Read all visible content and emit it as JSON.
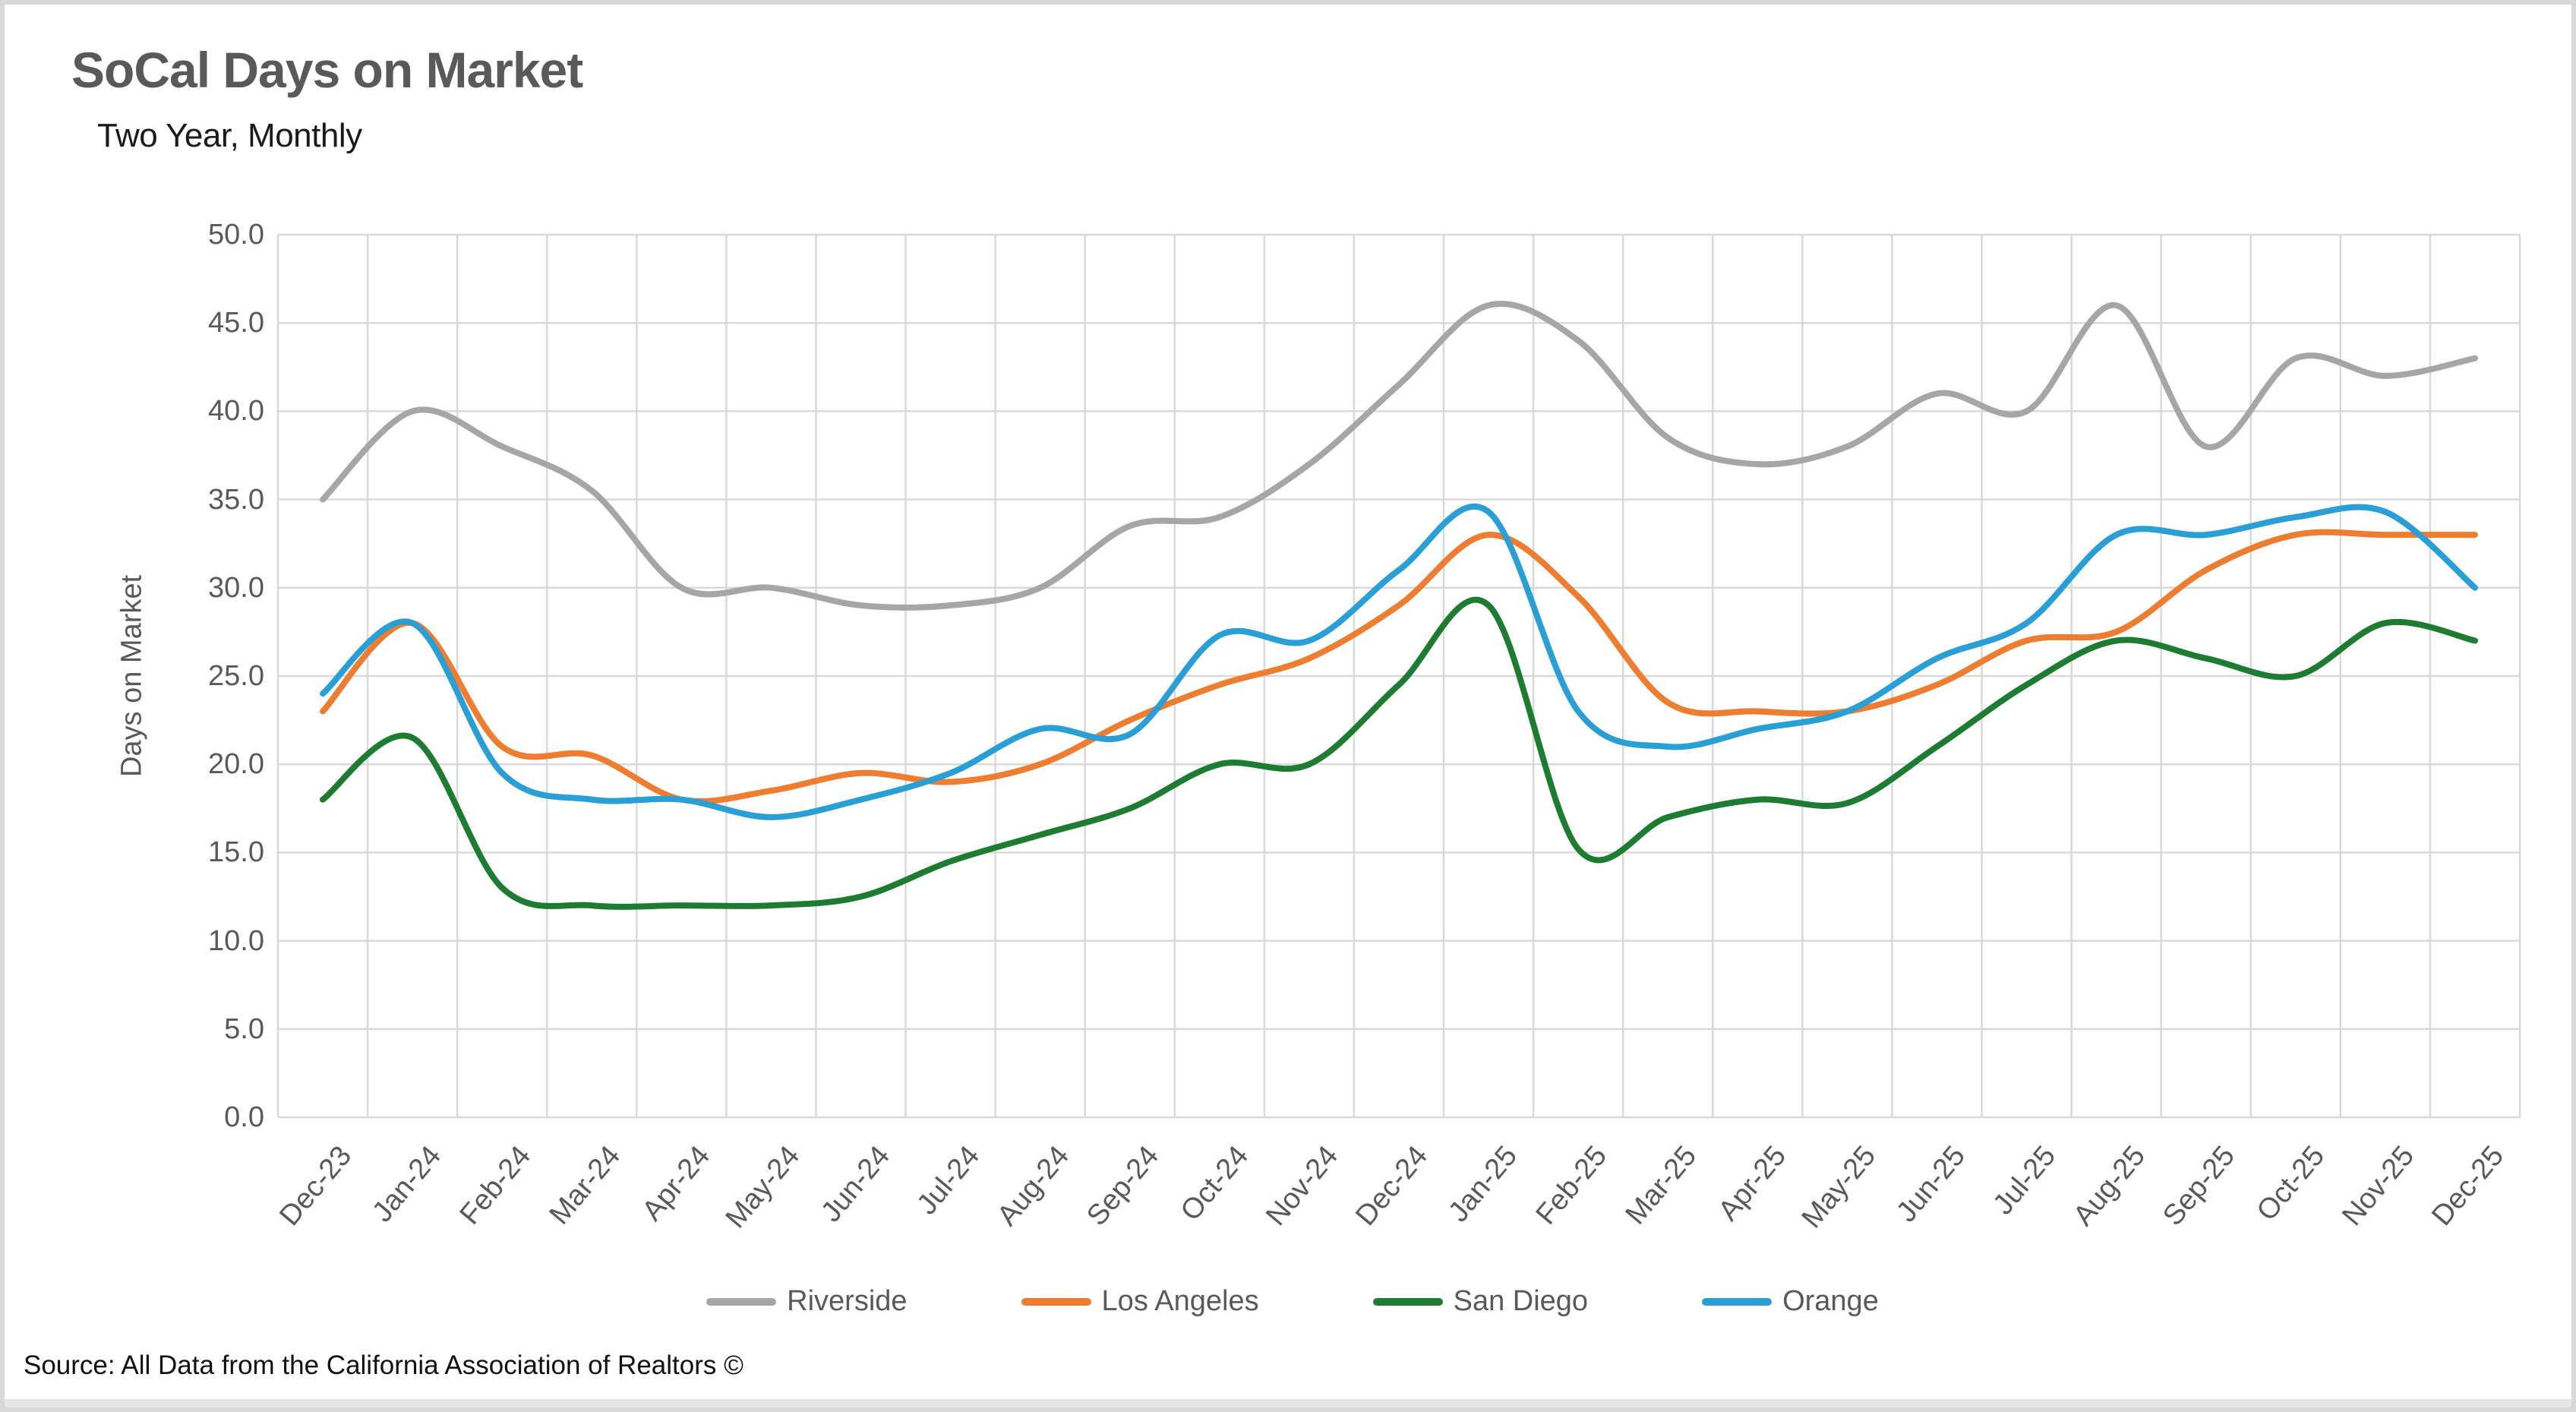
{
  "page": {
    "source_note": "Source: All Data from the California Association of Realtors ©"
  },
  "chart_data": {
    "type": "line",
    "title": "SoCal Days on Market",
    "subtitle": "Two Year, Monthly",
    "ylabel": "Days on Market",
    "xlabel": "",
    "ylim": [
      0,
      50
    ],
    "ytick_step": 5,
    "ytick_labels": [
      "0.0",
      "5.0",
      "10.0",
      "15.0",
      "20.0",
      "25.0",
      "30.0",
      "35.0",
      "40.0",
      "45.0",
      "50.0"
    ],
    "grid": true,
    "grid_color": "#d9d9d9",
    "legend_position": "bottom",
    "categories": [
      "Dec-23",
      "Jan-24",
      "Feb-24",
      "Mar-24",
      "Apr-24",
      "May-24",
      "Jun-24",
      "Jul-24",
      "Aug-24",
      "Sep-24",
      "Oct-24",
      "Nov-24",
      "Dec-24",
      "Jan-25",
      "Feb-25",
      "Mar-25",
      "Apr-25",
      "May-25",
      "Jun-25",
      "Jul-25",
      "Aug-25",
      "Sep-25",
      "Oct-25",
      "Nov-25",
      "Dec-25"
    ],
    "series": [
      {
        "name": "Riverside",
        "color": "#A6A6A6",
        "values": [
          35,
          40,
          38,
          35.5,
          30,
          30,
          29,
          29,
          30,
          33.5,
          34,
          37,
          41.5,
          46,
          44,
          38.5,
          37,
          38,
          41,
          40,
          46,
          38,
          43,
          42,
          43
        ]
      },
      {
        "name": "Los Angeles",
        "color": "#ED7D31",
        "values": [
          23,
          28,
          21,
          20.5,
          18,
          18.5,
          19.5,
          19,
          20,
          22.5,
          24.5,
          26,
          29,
          33,
          29.5,
          23.5,
          23,
          23,
          24.5,
          27,
          27.5,
          31,
          33,
          33,
          33
        ]
      },
      {
        "name": "San Diego",
        "color": "#1E7B32",
        "values": [
          18,
          21.5,
          13,
          12,
          12,
          12,
          12.5,
          14.5,
          16,
          17.5,
          20,
          20,
          24.5,
          29,
          15.2,
          17,
          18,
          17.8,
          21,
          24.5,
          27,
          26,
          25,
          28,
          27
        ]
      },
      {
        "name": "Orange",
        "color": "#2A9FD6",
        "values": [
          24,
          28,
          19.5,
          18,
          18,
          17,
          18,
          19.5,
          22,
          21.7,
          27.3,
          27,
          31,
          34.3,
          23,
          21,
          22,
          23,
          26,
          28,
          33,
          33,
          34,
          34.3,
          30
        ]
      }
    ]
  }
}
